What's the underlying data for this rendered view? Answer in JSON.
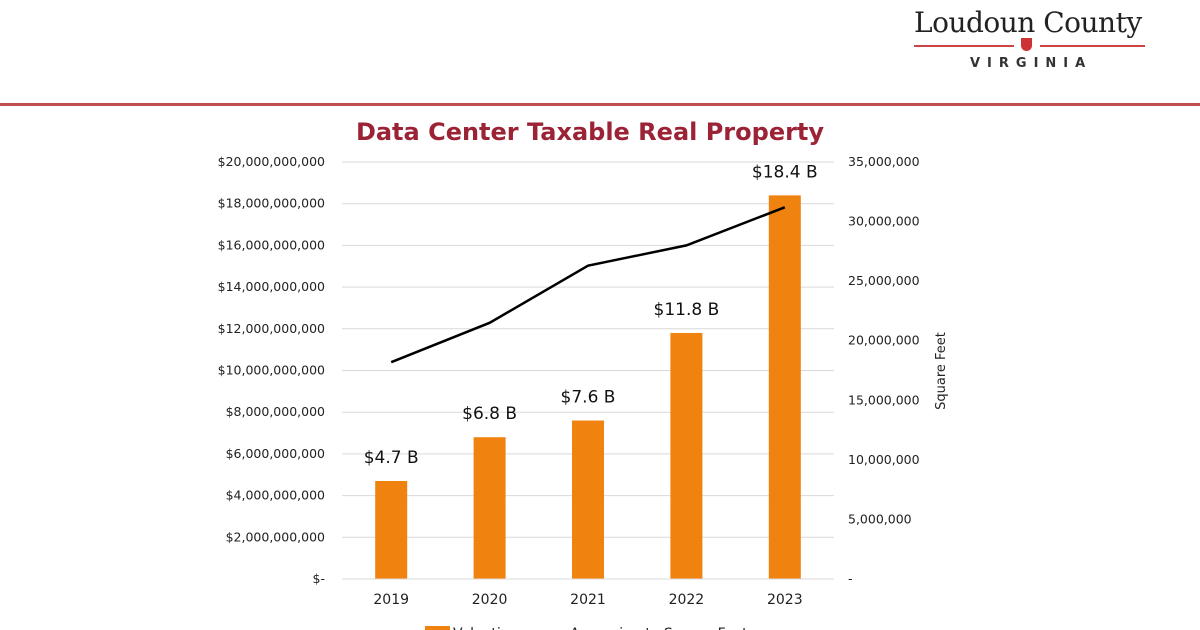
{
  "logo": {
    "name": "Loudoun County",
    "subtitle": "VIRGINIA"
  },
  "chart_data": {
    "type": "bar",
    "title": "Data Center Taxable Real Property",
    "categories": [
      "2019",
      "2020",
      "2021",
      "2022",
      "2023"
    ],
    "series": [
      {
        "name": "Valuation",
        "type": "bar",
        "axis": "left",
        "color": "#f0820f",
        "values": [
          4700000000,
          6800000000,
          7600000000,
          11800000000,
          18400000000
        ],
        "data_labels": [
          "$4.7 B",
          "$6.8 B",
          "$7.6 B",
          "$11.8 B",
          "$18.4 B"
        ]
      },
      {
        "name": "Approximate Square Feet",
        "type": "line",
        "axis": "right",
        "color": "#000000",
        "values": [
          18200000,
          21500000,
          26300000,
          28000000,
          31200000
        ]
      }
    ],
    "y_left": {
      "min": 0,
      "max": 20000000000,
      "ticks": [
        "$-",
        "$2,000,000,000",
        "$4,000,000,000",
        "$6,000,000,000",
        "$8,000,000,000",
        "$10,000,000,000",
        "$12,000,000,000",
        "$14,000,000,000",
        "$16,000,000,000",
        "$18,000,000,000",
        "$20,000,000,000"
      ]
    },
    "y_right": {
      "min": 0,
      "max": 35000000,
      "label": "Square Feet",
      "ticks": [
        "-",
        "5,000,000",
        "10,000,000",
        "15,000,000",
        "20,000,000",
        "25,000,000",
        "30,000,000",
        "35,000,000"
      ]
    },
    "grid": true,
    "legend": "bottom"
  }
}
